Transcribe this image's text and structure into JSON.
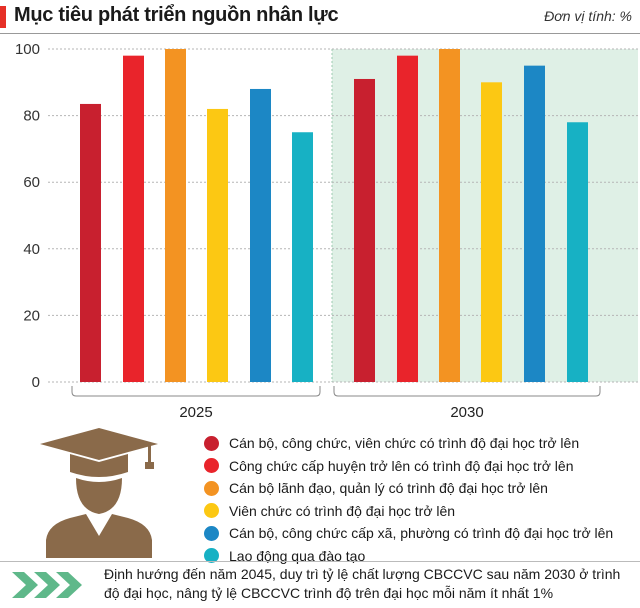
{
  "header": {
    "title": "Mục tiêu phát triển nguồn nhân lực",
    "unit": "Đơn vị tính: %"
  },
  "chart_data": {
    "type": "bar",
    "categories": [
      "2025",
      "2030"
    ],
    "ylim": [
      0,
      100
    ],
    "yticks": [
      0,
      20,
      40,
      60,
      80,
      100
    ],
    "grid": true,
    "legend_position": "bottom",
    "series": [
      {
        "name": "Cán bộ, công chức, viên chức có trình độ đại học trở lên",
        "color": "#c8202f",
        "values": [
          83.5,
          91
        ]
      },
      {
        "name": "Công chức cấp huyện trở lên có trình độ đại học trở lên",
        "color": "#e9242b",
        "values": [
          98,
          98
        ]
      },
      {
        "name": "Cán bộ lãnh đạo, quản lý có trình độ đại học trở lên",
        "color": "#f39322",
        "values": [
          100,
          100
        ]
      },
      {
        "name": "Viên chức có trình độ đại học trở lên",
        "color": "#fcc813",
        "values": [
          82,
          90
        ]
      },
      {
        "name": "Cán bộ, công chức cấp xã, phường có trình độ đại học trở lên",
        "color": "#1c87c5",
        "values": [
          88,
          95
        ]
      },
      {
        "name": "Lao động qua đào tạo",
        "color": "#17b1c4",
        "values": [
          75,
          78
        ]
      }
    ],
    "highlight_color": "#dff0e6"
  },
  "icons": {
    "graduate": "graduate-icon",
    "note": "double-chevron-icon"
  },
  "note": {
    "text": "Định hướng đến năm 2045, duy trì tỷ lệ chất lượng CBCCVC sau năm 2030 ở trình độ đại học, nâng tỷ lệ CBCCVC trình độ trên đại học mỗi năm ít nhất 1%"
  },
  "colors": {
    "accent": "#e63027",
    "icon_brown": "#8a6a4a",
    "chevron_green": "#5fb88a"
  }
}
